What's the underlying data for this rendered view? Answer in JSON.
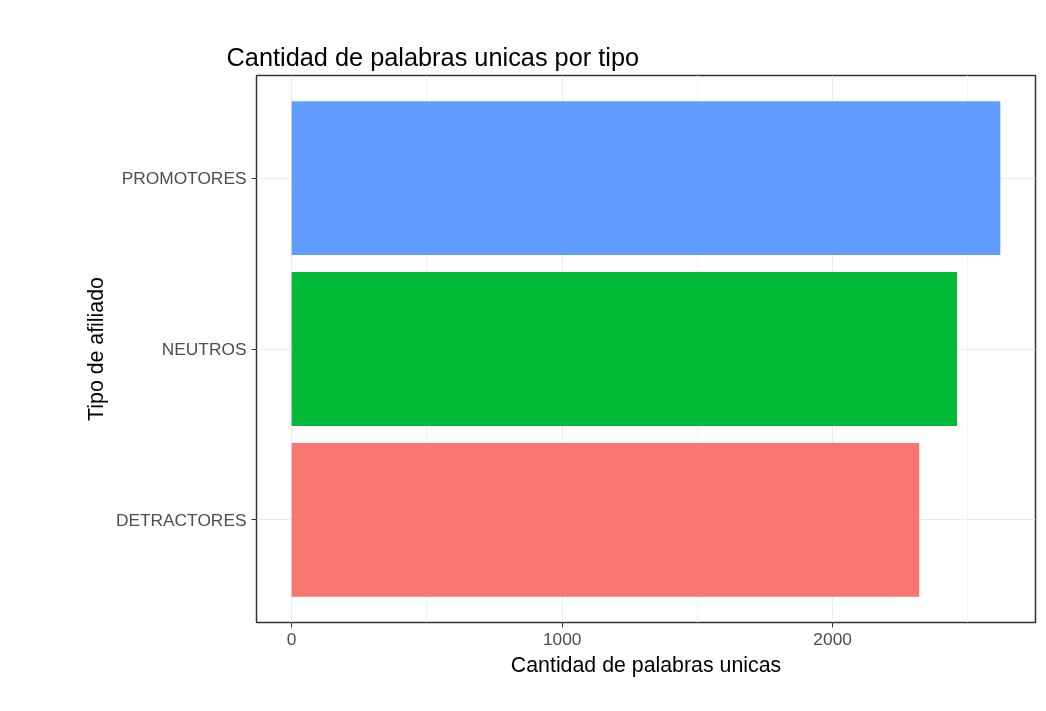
{
  "chart_data": {
    "type": "bar",
    "orientation": "horizontal",
    "title": "Cantidad de palabras unicas por tipo",
    "xlabel": "Cantidad de palabras unicas",
    "ylabel": "Tipo de afiliado",
    "categories": [
      "PROMOTORES",
      "NEUTROS",
      "DETRACTORES"
    ],
    "values": [
      2620,
      2460,
      2320
    ],
    "colors": [
      "#619cff",
      "#00ba38",
      "#f8766d"
    ],
    "xlim": [
      -130,
      2750
    ],
    "xticks": [
      0,
      1000,
      2000
    ],
    "grid": true
  }
}
